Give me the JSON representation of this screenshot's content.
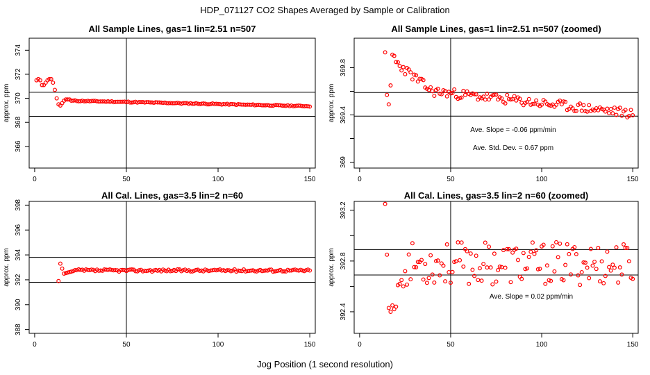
{
  "figure": {
    "title": "HDP_071127  CO2 Shapes Averaged by Sample or Calibration",
    "xlabel": "Jog Position (1 second resolution)"
  },
  "chart_data": [
    {
      "type": "scatter",
      "title": "All Sample Lines, gas=1 lin=2.51 n=507",
      "ylabel": "approx. ppm",
      "xlim": [
        -3,
        153
      ],
      "ylim": [
        364.2,
        375
      ],
      "xticks": [
        0,
        50,
        100,
        150
      ],
      "yticks": [
        366,
        368,
        370,
        372,
        374
      ],
      "vline": 50,
      "hlines": [
        370.5,
        368.5
      ],
      "marker_color": "#ff0000",
      "annotations": [],
      "series": [
        {
          "x": [],
          "y": []
        }
      ]
    },
    {
      "type": "scatter",
      "title": "All Sample Lines, gas=1 lin=2.51 n=507 (zoomed)",
      "ylabel": "approx. ppm",
      "xlim": [
        -3,
        153
      ],
      "ylim": [
        368.95,
        370.05
      ],
      "xticks": [
        0,
        50,
        100,
        150
      ],
      "yticks": [
        369.0,
        369.4,
        369.8
      ],
      "yticks_unlabeled": [
        369.2,
        369.6
      ],
      "vline": 50,
      "hlines": [
        369.59,
        369.39
      ],
      "marker_color": "#ff0000",
      "annotations": [
        "Ave. Slope =  -0.06  ppm/min",
        "Ave. Std. Dev. =  0.67  ppm"
      ],
      "series": [
        {
          "x": [],
          "y": []
        }
      ]
    },
    {
      "type": "scatter",
      "title": "All Cal. Lines, gas=3.5 lin=2 n=60",
      "ylabel": "approx. ppm",
      "xlim": [
        -3,
        153
      ],
      "ylim": [
        387.7,
        398.3
      ],
      "xticks": [
        0,
        50,
        100,
        150
      ],
      "yticks": [
        388,
        390,
        392,
        394,
        396,
        398
      ],
      "vline": 50,
      "hlines": [
        393.8,
        391.8
      ],
      "marker_color": "#ff0000",
      "annotations": [],
      "series": [
        {
          "x": [],
          "y": []
        }
      ]
    },
    {
      "type": "scatter",
      "title": "All Cal. Lines, gas=3.5 lin=2 n=60 (zoomed)",
      "ylabel": "approx. ppm",
      "xlim": [
        -3,
        153
      ],
      "ylim": [
        392.23,
        393.27
      ],
      "xticks": [
        0,
        50,
        100,
        150
      ],
      "yticks": [
        392.4,
        392.8,
        393.2
      ],
      "yticks_unlabeled": [
        392.6,
        393.0
      ],
      "vline": 50,
      "hlines": [
        392.89,
        392.69
      ],
      "marker_color": "#ff0000",
      "annotations": [
        "Ave. Slope =  0.02  ppm/min"
      ],
      "series": [
        {
          "x": [],
          "y": []
        }
      ]
    }
  ]
}
